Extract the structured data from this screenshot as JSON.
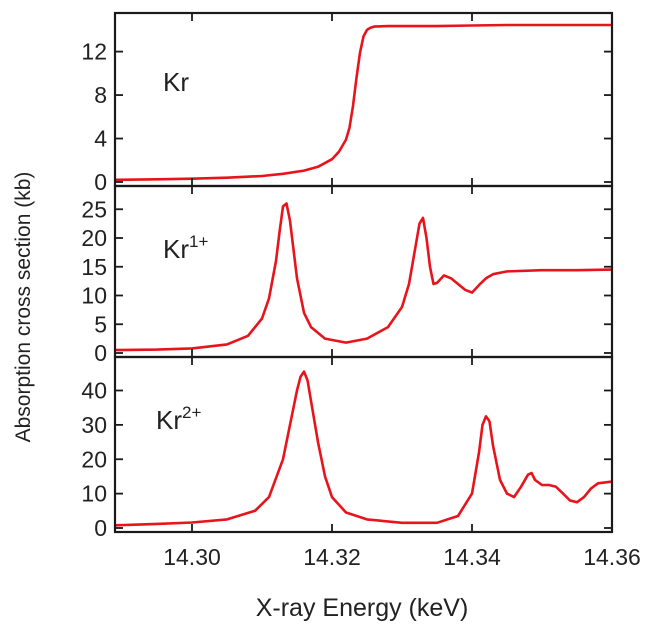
{
  "chart_data": {
    "type": "line",
    "xlabel": "X-ray Energy (keV)",
    "ylabel": "Absorption cross section (kb)",
    "xlim": [
      14.289,
      14.36
    ],
    "xticks": [
      14.3,
      14.32,
      14.34,
      14.36
    ],
    "xtick_labels": [
      "14.30",
      "14.32",
      "14.34",
      "14.36"
    ],
    "grid": false,
    "line_color": "#e8141c",
    "panels": [
      {
        "label": "Kr",
        "label_sup": "",
        "ylim": [
          0,
          15
        ],
        "yticks": [
          0,
          4,
          8,
          12
        ],
        "ytick_labels": [
          "0",
          "4",
          "8",
          "12"
        ],
        "series": [
          {
            "x": [
              14.289,
              14.295,
              14.3,
              14.305,
              14.31,
              14.313,
              14.316,
              14.318,
              14.32,
              14.321,
              14.322,
              14.3225,
              14.323,
              14.3235,
              14.324,
              14.3245,
              14.325,
              14.3255,
              14.326,
              14.328,
              14.33,
              14.335,
              14.34,
              14.345,
              14.35,
              14.355,
              14.36
            ],
            "y": [
              0.2,
              0.25,
              0.3,
              0.4,
              0.55,
              0.75,
              1.05,
              1.4,
              2.1,
              2.8,
              3.9,
              5.0,
              7.0,
              9.6,
              11.9,
              13.4,
              14.0,
              14.2,
              14.3,
              14.35,
              14.35,
              14.35,
              14.4,
              14.45,
              14.45,
              14.45,
              14.45
            ]
          }
        ]
      },
      {
        "label": "Kr",
        "label_sup": "1+",
        "ylim": [
          0,
          28
        ],
        "yticks": [
          0,
          5,
          10,
          15,
          20,
          25
        ],
        "ytick_labels": [
          "0",
          "5",
          "10",
          "15",
          "20",
          "25"
        ],
        "series": [
          {
            "x": [
              14.289,
              14.295,
              14.3,
              14.305,
              14.308,
              14.31,
              14.311,
              14.312,
              14.3125,
              14.313,
              14.3135,
              14.314,
              14.3145,
              14.315,
              14.316,
              14.317,
              14.319,
              14.322,
              14.325,
              14.328,
              14.33,
              14.331,
              14.332,
              14.3325,
              14.333,
              14.3335,
              14.334,
              14.3345,
              14.335,
              14.336,
              14.337,
              14.338,
              14.339,
              14.34,
              14.341,
              14.342,
              14.343,
              14.345,
              14.35,
              14.355,
              14.36
            ],
            "y": [
              0.5,
              0.6,
              0.8,
              1.5,
              3.0,
              6.0,
              9.5,
              16.0,
              21.0,
              25.5,
              26.0,
              23.0,
              18.0,
              13.0,
              7.0,
              4.5,
              2.5,
              1.8,
              2.5,
              4.5,
              8.0,
              12.0,
              19.0,
              22.5,
              23.5,
              20.0,
              15.0,
              12.0,
              12.2,
              13.5,
              13.0,
              12.0,
              11.0,
              10.5,
              11.8,
              13.0,
              13.7,
              14.2,
              14.4,
              14.4,
              14.5
            ]
          }
        ]
      },
      {
        "label": "Kr",
        "label_sup": "2+",
        "ylim": [
          0,
          48
        ],
        "yticks": [
          0,
          10,
          20,
          30,
          40
        ],
        "ytick_labels": [
          "0",
          "10",
          "20",
          "30",
          "40"
        ],
        "series": [
          {
            "x": [
              14.289,
              14.295,
              14.3,
              14.305,
              14.309,
              14.311,
              14.313,
              14.314,
              14.315,
              14.3155,
              14.316,
              14.3165,
              14.317,
              14.318,
              14.319,
              14.32,
              14.322,
              14.325,
              14.33,
              14.335,
              14.338,
              14.34,
              14.341,
              14.3415,
              14.342,
              14.3425,
              14.343,
              14.344,
              14.345,
              14.346,
              14.347,
              14.348,
              14.3485,
              14.349,
              14.35,
              14.351,
              14.352,
              14.353,
              14.354,
              14.355,
              14.356,
              14.357,
              14.358,
              14.36
            ],
            "y": [
              0.8,
              1.2,
              1.6,
              2.5,
              5.0,
              9.0,
              20.0,
              30.0,
              40.0,
              44.0,
              45.5,
              43.0,
              37.0,
              25.0,
              15.0,
              9.0,
              4.5,
              2.5,
              1.5,
              1.5,
              3.5,
              10.0,
              22.0,
              30.0,
              32.5,
              31.0,
              24.0,
              14.0,
              10.0,
              9.0,
              12.0,
              15.5,
              16.0,
              14.0,
              12.5,
              12.5,
              12.0,
              10.0,
              8.0,
              7.5,
              9.0,
              11.5,
              13.0,
              13.5
            ]
          }
        ]
      }
    ]
  }
}
